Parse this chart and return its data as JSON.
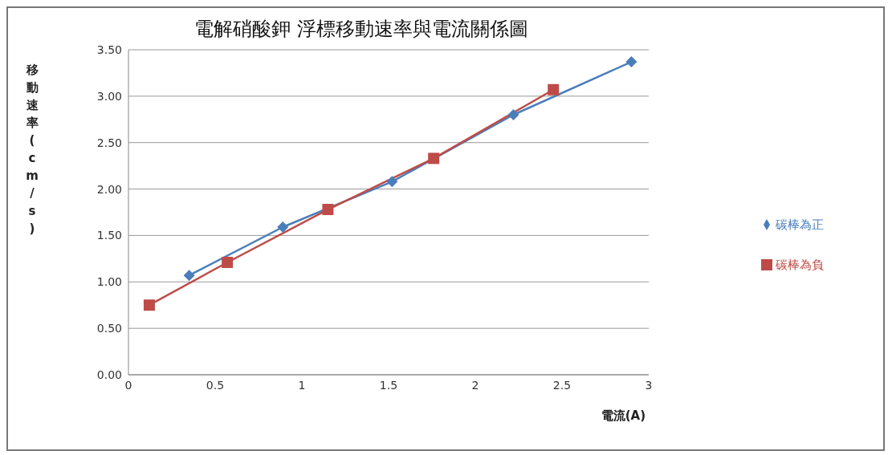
{
  "chart_data": {
    "type": "line",
    "title": "電解硝酸鉀 浮標移動速率與電流關係圖",
    "xlabel": "電流(A)",
    "ylabel": "移動速率(cm/s)",
    "xlim": [
      0,
      3
    ],
    "xticks": [
      0,
      0.5,
      1,
      1.5,
      2,
      2.5,
      3
    ],
    "ylim": [
      0,
      3.5
    ],
    "yticks": [
      {
        "value": 0,
        "label": "0.00"
      },
      {
        "value": 0.5,
        "label": "0.50"
      },
      {
        "value": 1,
        "label": "1.00"
      },
      {
        "value": 1.5,
        "label": "1.50"
      },
      {
        "value": 2,
        "label": "2.00"
      },
      {
        "value": 2.5,
        "label": "2.50"
      },
      {
        "value": 3,
        "label": "3.00"
      },
      {
        "value": 3.5,
        "label": "3.50"
      }
    ],
    "grid": "y",
    "legend": "right",
    "line_style": "solid",
    "series": [
      {
        "name": "碳棒為正",
        "color": "#4a7ebb",
        "marker": "diamond",
        "x": [
          0.35,
          0.89,
          1.52,
          2.22,
          2.9
        ],
        "values": [
          1.07,
          1.59,
          2.08,
          2.8,
          3.37
        ]
      },
      {
        "name": "碳棒為負",
        "color": "#be4b48",
        "marker": "square",
        "x": [
          0.12,
          0.57,
          1.15,
          1.76,
          2.45
        ],
        "values": [
          0.75,
          1.21,
          1.78,
          2.33,
          3.07
        ]
      }
    ]
  }
}
